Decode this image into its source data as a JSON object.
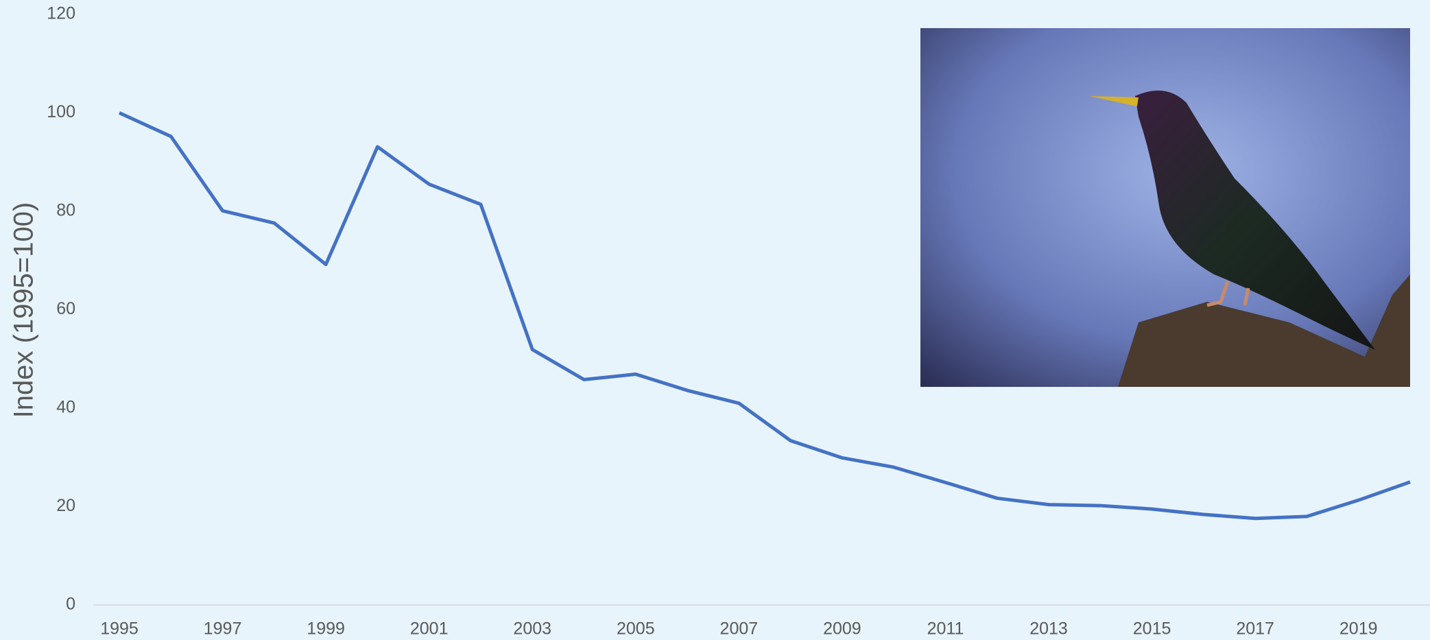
{
  "chart_data": {
    "type": "line",
    "y_label": "Index (1995=100)",
    "x": [
      1995,
      1996,
      1997,
      1998,
      1999,
      2000,
      2001,
      2002,
      2003,
      2004,
      2005,
      2006,
      2007,
      2008,
      2009,
      2010,
      2011,
      2012,
      2013,
      2014,
      2015,
      2016,
      2017,
      2018,
      2019,
      2020
    ],
    "values": [
      100,
      95.2,
      80.1,
      77.6,
      69.2,
      93.1,
      85.5,
      81.4,
      51.9,
      45.8,
      46.9,
      43.6,
      41.0,
      33.4,
      29.9,
      28.0,
      24.9,
      21.7,
      20.4,
      20.2,
      19.5,
      18.4,
      17.6,
      18.0,
      21.3,
      25.0
    ],
    "color": "#4472c4",
    "xlim": [
      1995,
      2020
    ],
    "xticks": [
      1995,
      1997,
      1999,
      2001,
      2003,
      2005,
      2007,
      2009,
      2011,
      2013,
      2015,
      2017,
      2019
    ],
    "ylim": [
      0,
      120
    ],
    "yticks": [
      0,
      20,
      40,
      60,
      80,
      100,
      120
    ],
    "grid": false
  }
}
